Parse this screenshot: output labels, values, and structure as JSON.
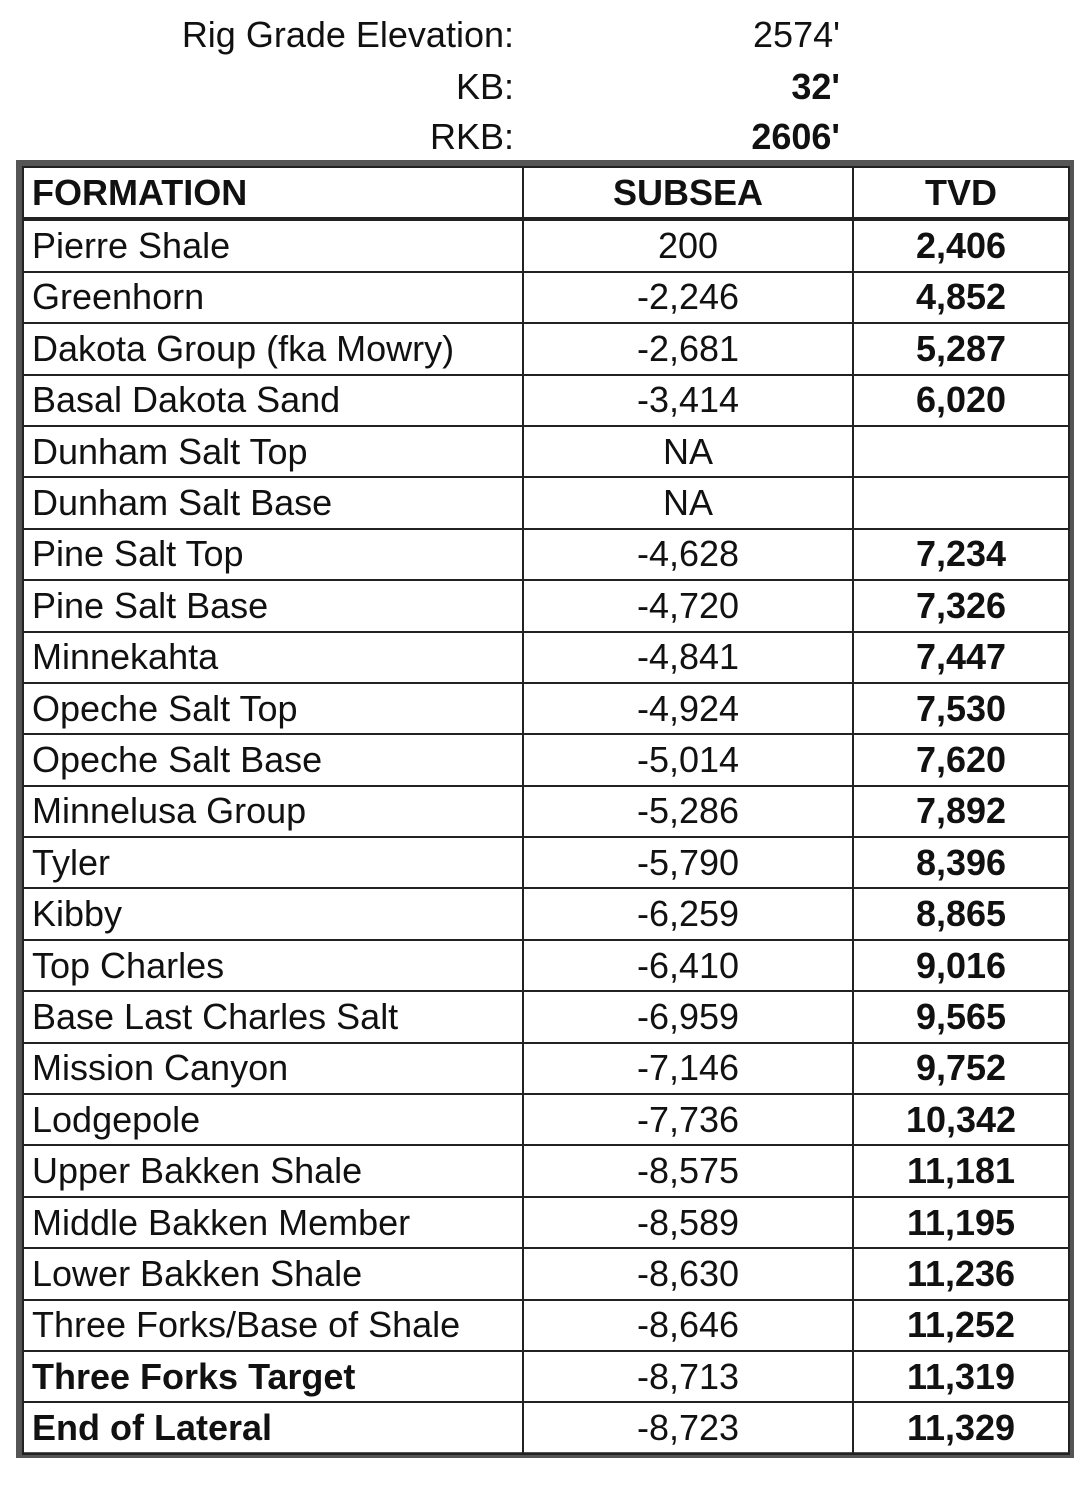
{
  "header": {
    "rig_grade_elevation_label": "Rig Grade Elevation:",
    "rig_grade_elevation_value": "2574'",
    "kb_label": "KB:",
    "kb_value": "32'",
    "rkb_label": "RKB:",
    "rkb_value": "2606'"
  },
  "table": {
    "columns": [
      "FORMATION",
      "SUBSEA",
      "TVD"
    ],
    "rows": [
      {
        "formation": "Pierre Shale",
        "subsea": "200",
        "tvd": "2,406"
      },
      {
        "formation": "Greenhorn",
        "subsea": "-2,246",
        "tvd": "4,852"
      },
      {
        "formation": "Dakota Group (fka Mowry)",
        "subsea": "-2,681",
        "tvd": "5,287"
      },
      {
        "formation": "Basal Dakota Sand",
        "subsea": "-3,414",
        "tvd": "6,020"
      },
      {
        "formation": "Dunham Salt Top",
        "subsea": "NA",
        "tvd": ""
      },
      {
        "formation": "Dunham Salt Base",
        "subsea": "NA",
        "tvd": ""
      },
      {
        "formation": "Pine Salt Top",
        "subsea": "-4,628",
        "tvd": "7,234"
      },
      {
        "formation": "Pine Salt Base",
        "subsea": "-4,720",
        "tvd": "7,326"
      },
      {
        "formation": "Minnekahta",
        "subsea": "-4,841",
        "tvd": "7,447"
      },
      {
        "formation": "Opeche Salt Top",
        "subsea": "-4,924",
        "tvd": "7,530"
      },
      {
        "formation": "Opeche Salt Base",
        "subsea": "-5,014",
        "tvd": "7,620"
      },
      {
        "formation": "Minnelusa Group",
        "subsea": "-5,286",
        "tvd": "7,892"
      },
      {
        "formation": "Tyler",
        "subsea": "-5,790",
        "tvd": "8,396"
      },
      {
        "formation": "Kibby",
        "subsea": "-6,259",
        "tvd": "8,865"
      },
      {
        "formation": "Top Charles",
        "subsea": "-6,410",
        "tvd": "9,016"
      },
      {
        "formation": "Base Last Charles Salt",
        "subsea": "-6,959",
        "tvd": "9,565"
      },
      {
        "formation": "Mission Canyon",
        "subsea": "-7,146",
        "tvd": "9,752"
      },
      {
        "formation": "Lodgepole",
        "subsea": "-7,736",
        "tvd": "10,342"
      },
      {
        "formation": "Upper Bakken Shale",
        "subsea": "-8,575",
        "tvd": "11,181"
      },
      {
        "formation": "Middle Bakken Member",
        "subsea": "-8,589",
        "tvd": "11,195"
      },
      {
        "formation": "Lower Bakken Shale",
        "subsea": "-8,630",
        "tvd": "11,236"
      },
      {
        "formation": "Three Forks/Base of Shale",
        "subsea": "-8,646",
        "tvd": "11,252"
      },
      {
        "formation": "Three Forks Target",
        "subsea": "-8,713",
        "tvd": "11,319",
        "bold": true
      },
      {
        "formation": "End of Lateral",
        "subsea": "-8,723",
        "tvd": "11,329",
        "bold": true
      }
    ]
  }
}
